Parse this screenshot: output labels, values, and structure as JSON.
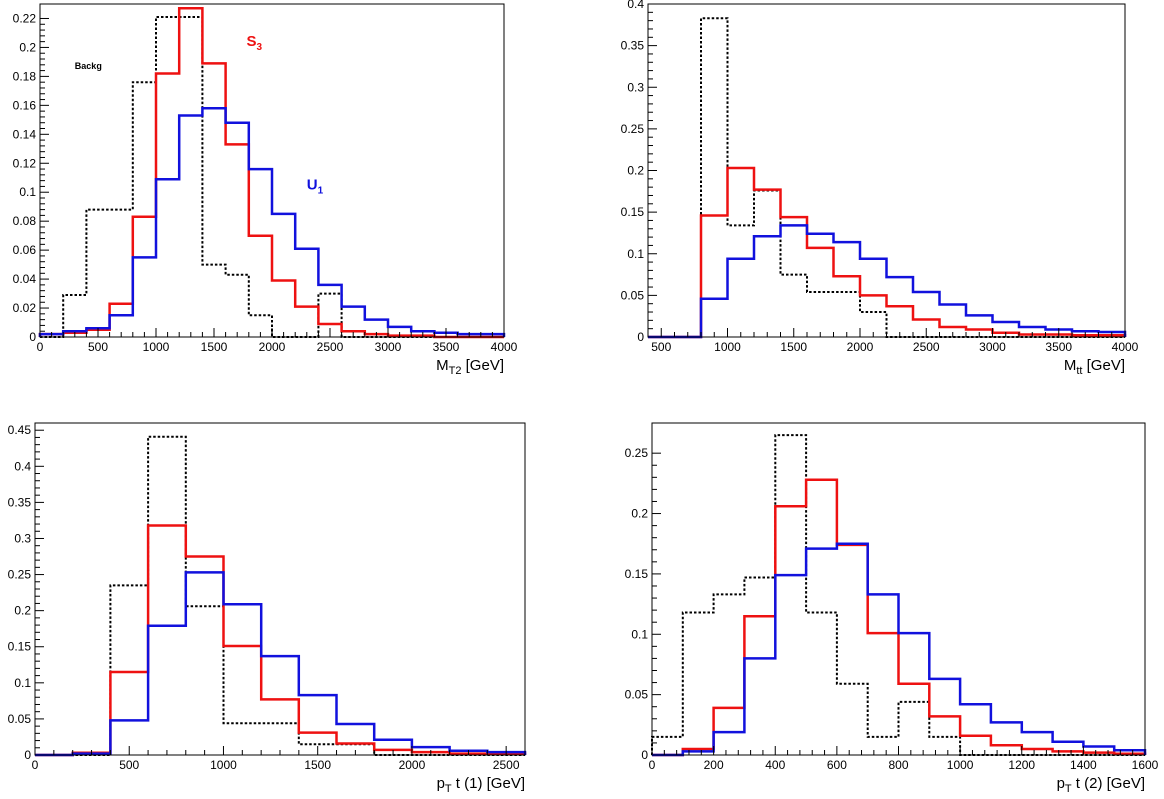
{
  "chart_data": [
    {
      "type": "histogram",
      "xlabel": "M_T2 [GeV]",
      "xlabel_main": "M",
      "xlabel_sub": "T2",
      "xlabel_unit": "[GeV]",
      "xlim": [
        0,
        4000
      ],
      "ylim": [
        0,
        0.23
      ],
      "xticks": [
        0,
        500,
        1000,
        1500,
        2000,
        2500,
        3000,
        3500,
        4000
      ],
      "xtick_labels": [
        "0",
        "500",
        "1000",
        "1500",
        "2000",
        "2500",
        "3000",
        "3500",
        "4000"
      ],
      "yticks": [
        0,
        0.02,
        0.04,
        0.06,
        0.08,
        0.1,
        0.12,
        0.14,
        0.16,
        0.18,
        0.2,
        0.22
      ],
      "ytick_labels": [
        "0",
        "0.02",
        "0.04",
        "0.06",
        "0.08",
        "0.1",
        "0.12",
        "0.14",
        "0.16",
        "0.18",
        "0.2",
        "0.22"
      ],
      "bin_edges": [
        0,
        200,
        400,
        600,
        800,
        1000,
        1200,
        1400,
        1600,
        1800,
        2000,
        2200,
        2400,
        2600,
        2800,
        3000,
        3200,
        3400,
        3600,
        3800,
        4000
      ],
      "annotations": [
        {
          "text": "Backg",
          "x": 300,
          "y": 0.185,
          "color": "#000000",
          "size": 9,
          "bold": true
        },
        {
          "text": "S",
          "sub": "3",
          "x": 1780,
          "y": 0.201,
          "color": "#ee1111",
          "size": 15,
          "bold": true
        },
        {
          "text": "U",
          "sub": "1",
          "x": 2300,
          "y": 0.102,
          "color": "#1111dd",
          "size": 15,
          "bold": true
        }
      ],
      "series": [
        {
          "color": "#000000",
          "style": "dotted",
          "values": [
            0.0,
            0.029,
            0.088,
            0.088,
            0.176,
            0.221,
            0.221,
            0.05,
            0.043,
            0.015,
            0.0,
            0.0,
            0.03,
            0.0,
            0.0,
            0.0,
            0.0,
            0.0,
            0.0,
            0.0
          ]
        },
        {
          "color": "#ee1111",
          "style": "solid",
          "values": [
            0.002,
            0.003,
            0.005,
            0.023,
            0.083,
            0.182,
            0.227,
            0.189,
            0.133,
            0.07,
            0.039,
            0.021,
            0.009,
            0.004,
            0.002,
            0.001,
            0.001,
            0.0,
            0.0,
            0.0
          ]
        },
        {
          "color": "#1111dd",
          "style": "solid",
          "values": [
            0.002,
            0.004,
            0.006,
            0.015,
            0.055,
            0.109,
            0.153,
            0.158,
            0.148,
            0.116,
            0.085,
            0.061,
            0.036,
            0.021,
            0.012,
            0.007,
            0.004,
            0.003,
            0.002,
            0.002
          ]
        }
      ]
    },
    {
      "type": "histogram",
      "xlabel": "M_tt [GeV]",
      "xlabel_main": "M",
      "xlabel_sub": "tt",
      "xlabel_unit": "[GeV]",
      "xlim": [
        400,
        4000
      ],
      "ylim": [
        0,
        0.4
      ],
      "xticks": [
        500,
        1000,
        1500,
        2000,
        2500,
        3000,
        3500,
        4000
      ],
      "xtick_labels": [
        "500",
        "1000",
        "1500",
        "2000",
        "2500",
        "3000",
        "3500",
        "4000"
      ],
      "yticks": [
        0,
        0.05,
        0.1,
        0.15,
        0.2,
        0.25,
        0.3,
        0.35,
        0.4
      ],
      "ytick_labels": [
        "0",
        "0.05",
        "0.1",
        "0.15",
        "0.2",
        "0.25",
        "0.3",
        "0.35",
        "0.4"
      ],
      "bin_edges": [
        400,
        600,
        800,
        1000,
        1200,
        1400,
        1600,
        1800,
        2000,
        2200,
        2400,
        2600,
        2800,
        3000,
        3200,
        3400,
        3600,
        3800,
        4000
      ],
      "annotations": [],
      "series": [
        {
          "color": "#000000",
          "style": "dotted",
          "values": [
            0.0,
            0.0,
            0.383,
            0.134,
            0.176,
            0.075,
            0.054,
            0.054,
            0.03,
            0.0,
            0.0,
            0.0,
            0.0,
            0.0,
            0.0,
            0.0,
            0.0,
            0.0
          ]
        },
        {
          "color": "#ee1111",
          "style": "solid",
          "values": [
            0.0,
            0.0,
            0.146,
            0.203,
            0.177,
            0.144,
            0.107,
            0.073,
            0.05,
            0.037,
            0.021,
            0.012,
            0.009,
            0.005,
            0.003,
            0.003,
            0.002,
            0.002
          ]
        },
        {
          "color": "#1111dd",
          "style": "solid",
          "values": [
            0.0,
            0.0,
            0.046,
            0.094,
            0.121,
            0.134,
            0.124,
            0.114,
            0.094,
            0.072,
            0.054,
            0.039,
            0.026,
            0.018,
            0.012,
            0.009,
            0.007,
            0.006
          ]
        }
      ]
    },
    {
      "type": "histogram",
      "xlabel": "p_T t (1) [GeV]",
      "xlabel_main": "p",
      "xlabel_sub": "T",
      "xlabel_unit": " t (1) [GeV]",
      "xlim": [
        0,
        2600
      ],
      "ylim": [
        0,
        0.46
      ],
      "xticks": [
        0,
        500,
        1000,
        1500,
        2000,
        2500
      ],
      "xtick_labels": [
        "0",
        "500",
        "1000",
        "1500",
        "2000",
        "2500"
      ],
      "yticks": [
        0,
        0.05,
        0.1,
        0.15,
        0.2,
        0.25,
        0.3,
        0.35,
        0.4,
        0.45
      ],
      "ytick_labels": [
        "0",
        "0.05",
        "0.1",
        "0.15",
        "0.2",
        "0.25",
        "0.3",
        "0.35",
        "0.4",
        "0.45"
      ],
      "bin_edges": [
        0,
        200,
        400,
        600,
        800,
        1000,
        1200,
        1400,
        1600,
        1800,
        2000,
        2200,
        2400,
        2600
      ],
      "annotations": [],
      "series": [
        {
          "color": "#000000",
          "style": "dotted",
          "values": [
            0.0,
            0.0,
            0.235,
            0.441,
            0.206,
            0.044,
            0.044,
            0.015,
            0.015,
            0.0,
            0.0,
            0.0,
            0.0
          ]
        },
        {
          "color": "#ee1111",
          "style": "solid",
          "values": [
            0.0,
            0.003,
            0.115,
            0.318,
            0.275,
            0.151,
            0.077,
            0.031,
            0.016,
            0.007,
            0.004,
            0.002,
            0.002
          ]
        },
        {
          "color": "#1111dd",
          "style": "solid",
          "values": [
            0.0,
            0.002,
            0.048,
            0.179,
            0.253,
            0.209,
            0.137,
            0.083,
            0.043,
            0.021,
            0.011,
            0.006,
            0.004
          ]
        }
      ]
    },
    {
      "type": "histogram",
      "xlabel": "p_T t (2) [GeV]",
      "xlabel_main": "p",
      "xlabel_sub": "T",
      "xlabel_unit": " t (2)  [GeV]",
      "xlim": [
        0,
        1600
      ],
      "ylim": [
        0,
        0.275
      ],
      "xticks": [
        0,
        200,
        400,
        600,
        800,
        1000,
        1200,
        1400,
        1600
      ],
      "xtick_labels": [
        "0",
        "200",
        "400",
        "600",
        "800",
        "1000",
        "1200",
        "1400",
        "1600"
      ],
      "yticks": [
        0,
        0.05,
        0.1,
        0.15,
        0.2,
        0.25
      ],
      "ytick_labels": [
        "0",
        "0.05",
        "0.1",
        "0.15",
        "0.2",
        "0.25"
      ],
      "bin_edges": [
        0,
        100,
        200,
        300,
        400,
        500,
        600,
        700,
        800,
        900,
        1000,
        1100,
        1200,
        1300,
        1400,
        1500,
        1600
      ],
      "annotations": [],
      "series": [
        {
          "color": "#000000",
          "style": "dotted",
          "values": [
            0.015,
            0.118,
            0.133,
            0.147,
            0.265,
            0.118,
            0.059,
            0.015,
            0.044,
            0.015,
            0.0,
            0.0,
            0.0,
            0.0,
            0.0,
            0.0
          ]
        },
        {
          "color": "#ee1111",
          "style": "solid",
          "values": [
            0.0,
            0.005,
            0.039,
            0.115,
            0.206,
            0.228,
            0.174,
            0.101,
            0.059,
            0.032,
            0.016,
            0.008,
            0.005,
            0.003,
            0.002,
            0.001
          ]
        },
        {
          "color": "#1111dd",
          "style": "solid",
          "values": [
            0.0,
            0.003,
            0.019,
            0.08,
            0.149,
            0.171,
            0.175,
            0.133,
            0.101,
            0.063,
            0.042,
            0.027,
            0.019,
            0.011,
            0.007,
            0.004
          ]
        }
      ]
    }
  ]
}
